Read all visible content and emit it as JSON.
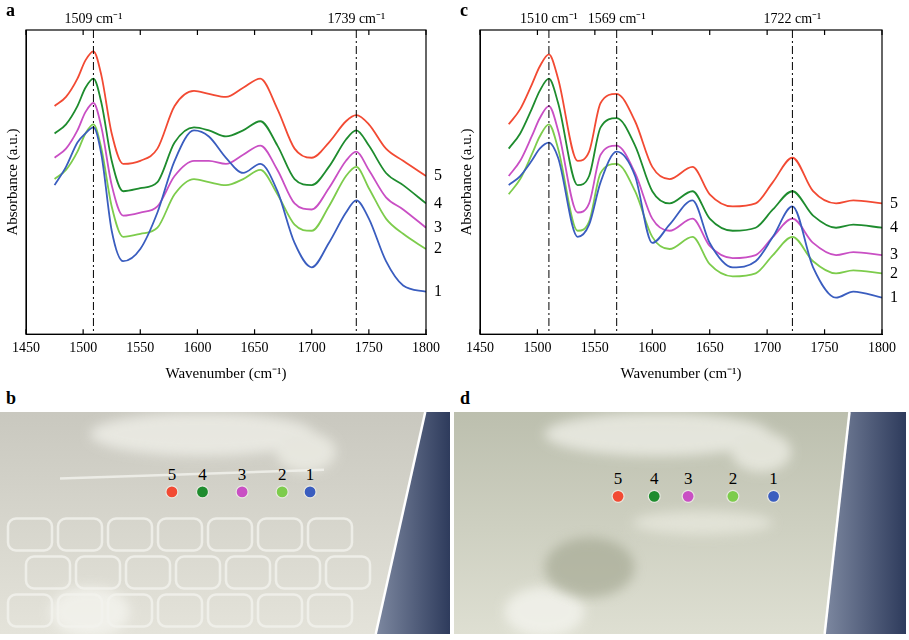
{
  "chart_data": [
    {
      "panel": "a",
      "type": "line",
      "x_label": "Wavenumber (cm⁻¹)",
      "y_label": "Absorbance (a.u.)",
      "x": [
        1475,
        1485,
        1495,
        1502,
        1509,
        1516,
        1525,
        1535,
        1550,
        1565,
        1580,
        1597,
        1610,
        1625,
        1640,
        1655,
        1670,
        1685,
        1700,
        1715,
        1730,
        1739,
        1750,
        1765,
        1780,
        1800
      ],
      "series": [
        {
          "name": "1",
          "color": "#3a5dbf",
          "values": [
            4.9,
            5.5,
            6.3,
            6.6,
            6.8,
            5.9,
            3.4,
            2.4,
            2.8,
            4.0,
            5.7,
            6.7,
            6.5,
            5.8,
            5.3,
            5.6,
            4.7,
            3.0,
            2.2,
            3.0,
            4.0,
            4.4,
            3.8,
            2.4,
            1.6,
            1.4
          ]
        },
        {
          "name": "2",
          "color": "#7dcc4c",
          "values": [
            5.1,
            5.4,
            6.0,
            6.6,
            6.9,
            6.1,
            4.2,
            3.2,
            3.3,
            3.5,
            4.6,
            5.1,
            5.0,
            4.9,
            5.1,
            5.4,
            4.6,
            3.6,
            3.4,
            4.2,
            5.2,
            5.5,
            4.8,
            3.8,
            3.3,
            2.8
          ]
        },
        {
          "name": "3",
          "color": "#c94fc4",
          "values": [
            5.8,
            6.1,
            6.7,
            7.3,
            7.6,
            6.8,
            4.9,
            3.9,
            4.0,
            4.2,
            5.2,
            5.7,
            5.7,
            5.6,
            5.9,
            6.2,
            5.4,
            4.3,
            4.1,
            4.8,
            5.7,
            6.0,
            5.4,
            4.5,
            4.1,
            3.5
          ]
        },
        {
          "name": "4",
          "color": "#1e8c2e",
          "values": [
            6.6,
            6.9,
            7.5,
            8.1,
            8.4,
            7.6,
            5.7,
            4.7,
            4.8,
            5.0,
            6.3,
            6.8,
            6.7,
            6.5,
            6.7,
            7.0,
            6.2,
            5.1,
            4.9,
            5.5,
            6.4,
            6.7,
            6.2,
            5.3,
            4.9,
            4.3
          ]
        },
        {
          "name": "5",
          "color": "#f24a33",
          "values": [
            7.5,
            7.8,
            8.4,
            9.0,
            9.3,
            8.5,
            6.6,
            5.6,
            5.7,
            6.1,
            7.5,
            8.0,
            7.9,
            7.8,
            8.1,
            8.4,
            7.4,
            6.1,
            5.8,
            6.3,
            7.0,
            7.2,
            6.9,
            6.1,
            5.7,
            5.2
          ]
        }
      ],
      "xlim": [
        1450,
        1800
      ],
      "xticks": [
        1450,
        1500,
        1550,
        1600,
        1650,
        1700,
        1750,
        1800
      ],
      "ylim": [
        0,
        10
      ],
      "tick_labels": "x",
      "grid": false,
      "annotations": [
        {
          "x": 1509,
          "text": "1509 cm⁻¹"
        },
        {
          "x": 1739,
          "text": "1739 cm⁻¹"
        }
      ]
    },
    {
      "panel": "c",
      "type": "line",
      "x_label": "Wavenumber (cm⁻¹)",
      "y_label": "Absorbance (a.u.)",
      "x": [
        1475,
        1485,
        1495,
        1502,
        1510,
        1518,
        1535,
        1545,
        1555,
        1569,
        1585,
        1600,
        1615,
        1635,
        1650,
        1670,
        1690,
        1705,
        1722,
        1740,
        1760,
        1775,
        1800
      ],
      "series": [
        {
          "name": "1",
          "color": "#3a5dbf",
          "values": [
            4.9,
            5.2,
            5.7,
            6.1,
            6.3,
            5.8,
            3.2,
            3.6,
            5.0,
            6.0,
            5.2,
            3.0,
            3.6,
            4.4,
            3.0,
            2.2,
            2.4,
            3.2,
            4.2,
            2.2,
            1.2,
            1.4,
            1.2
          ]
        },
        {
          "name": "2",
          "color": "#7dcc4c",
          "values": [
            4.6,
            5.1,
            5.9,
            6.5,
            6.9,
            6.1,
            3.4,
            3.7,
            5.3,
            5.6,
            4.7,
            3.2,
            2.8,
            3.2,
            2.3,
            1.9,
            2.0,
            2.6,
            3.2,
            2.4,
            2.0,
            2.1,
            2.0
          ]
        },
        {
          "name": "3",
          "color": "#c94fc4",
          "values": [
            5.2,
            5.7,
            6.5,
            7.1,
            7.5,
            6.7,
            4.0,
            4.3,
            5.9,
            6.2,
            5.3,
            3.8,
            3.4,
            3.8,
            2.9,
            2.5,
            2.6,
            3.2,
            3.8,
            3.0,
            2.6,
            2.7,
            2.6
          ]
        },
        {
          "name": "4",
          "color": "#1e8c2e",
          "values": [
            6.1,
            6.6,
            7.4,
            8.0,
            8.4,
            7.6,
            4.9,
            5.2,
            6.8,
            7.1,
            6.2,
            4.7,
            4.3,
            4.7,
            3.8,
            3.4,
            3.5,
            4.1,
            4.7,
            3.9,
            3.5,
            3.6,
            3.5
          ]
        },
        {
          "name": "5",
          "color": "#f24a33",
          "values": [
            6.9,
            7.4,
            8.2,
            8.8,
            9.2,
            8.4,
            5.7,
            6.0,
            7.6,
            7.9,
            7.0,
            5.5,
            5.1,
            5.5,
            4.6,
            4.2,
            4.3,
            5.0,
            5.8,
            4.7,
            4.3,
            4.4,
            4.3
          ]
        }
      ],
      "xlim": [
        1450,
        1800
      ],
      "xticks": [
        1450,
        1500,
        1550,
        1600,
        1650,
        1700,
        1750,
        1800
      ],
      "ylim": [
        0,
        10
      ],
      "tick_labels": "x",
      "grid": false,
      "annotations": [
        {
          "x": 1510,
          "text": "1510 cm⁻¹"
        },
        {
          "x": 1569,
          "text": "1569 cm⁻¹"
        },
        {
          "x": 1722,
          "text": "1722 cm⁻¹"
        }
      ]
    }
  ],
  "images": [
    {
      "panel": "b",
      "markers": [
        {
          "label": "5",
          "color": "#f24a33"
        },
        {
          "label": "4",
          "color": "#1e8c2e"
        },
        {
          "label": "3",
          "color": "#c94fc4"
        },
        {
          "label": "2",
          "color": "#7dcc4c"
        },
        {
          "label": "1",
          "color": "#3a5dbf"
        }
      ]
    },
    {
      "panel": "d",
      "markers": [
        {
          "label": "5",
          "color": "#f24a33"
        },
        {
          "label": "4",
          "color": "#1e8c2e"
        },
        {
          "label": "3",
          "color": "#c94fc4"
        },
        {
          "label": "2",
          "color": "#7dcc4c"
        },
        {
          "label": "1",
          "color": "#3a5dbf"
        }
      ]
    }
  ]
}
